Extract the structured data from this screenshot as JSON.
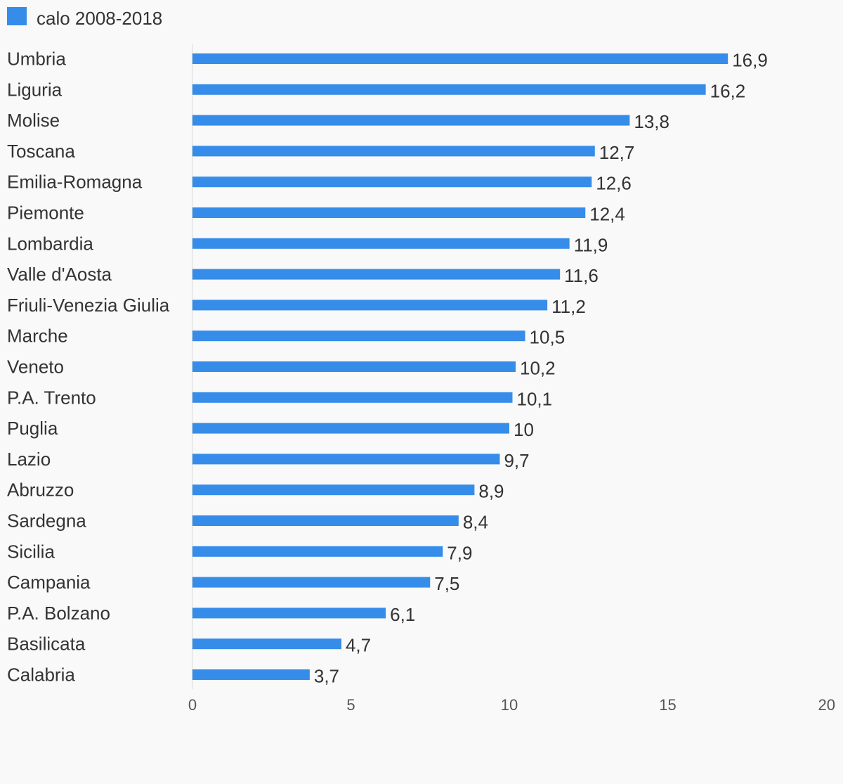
{
  "chart_data": {
    "type": "bar",
    "orientation": "horizontal",
    "title": "",
    "xlabel": "",
    "ylabel": "",
    "legend": {
      "position": "top-left",
      "entries": [
        "calo 2008-2018"
      ]
    },
    "grid": false,
    "xlim": [
      0,
      20
    ],
    "ticks": [
      0,
      5,
      10,
      15,
      20
    ],
    "tick_labels": [
      "0",
      "5",
      "10",
      "15",
      "20"
    ],
    "categories": [
      "Umbria",
      "Liguria",
      "Molise",
      "Toscana",
      "Emilia-Romagna",
      "Piemonte",
      "Lombardia",
      "Valle d'Aosta",
      "Friuli-Venezia Giulia",
      "Marche",
      "Veneto",
      "P.A. Trento",
      "Puglia",
      "Lazio",
      "Abruzzo",
      "Sardegna",
      "Sicilia",
      "Campania",
      "P.A. Bolzano",
      "Basilicata",
      "Calabria"
    ],
    "series": [
      {
        "name": "calo 2008-2018",
        "color": "#368de9",
        "values": [
          16.9,
          16.2,
          13.8,
          12.7,
          12.6,
          12.4,
          11.9,
          11.6,
          11.2,
          10.5,
          10.2,
          10.1,
          10,
          9.7,
          8.9,
          8.4,
          7.9,
          7.5,
          6.1,
          4.7,
          3.7
        ],
        "labels": [
          "16,9",
          "16,2",
          "13,8",
          "12,7",
          "12,6",
          "12,4",
          "11,9",
          "11,6",
          "11,2",
          "10,5",
          "10,2",
          "10,1",
          "10",
          "9,7",
          "8,9",
          "8,4",
          "7,9",
          "7,5",
          "6,1",
          "4,7",
          "3,7"
        ]
      }
    ]
  }
}
